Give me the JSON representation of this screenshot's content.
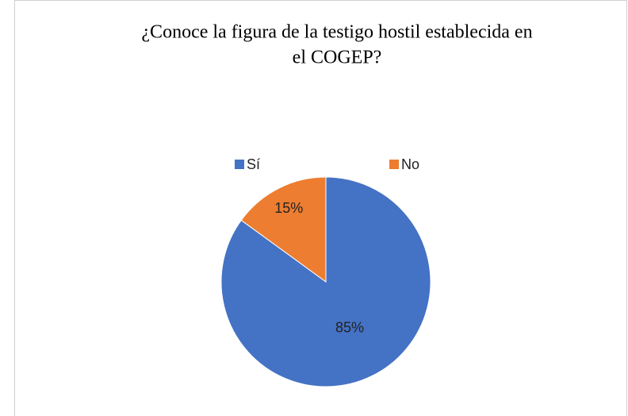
{
  "chart_data": {
    "type": "pie",
    "title": [
      "¿Conoce la figura de la testigo hostil establecida en",
      "el COGEP?"
    ],
    "categories": [
      "Sí",
      "No"
    ],
    "values": [
      85,
      15
    ],
    "value_labels": [
      "85%",
      "15%"
    ],
    "colors": [
      "#4472c4",
      "#ed7d31"
    ],
    "legend": "top"
  }
}
